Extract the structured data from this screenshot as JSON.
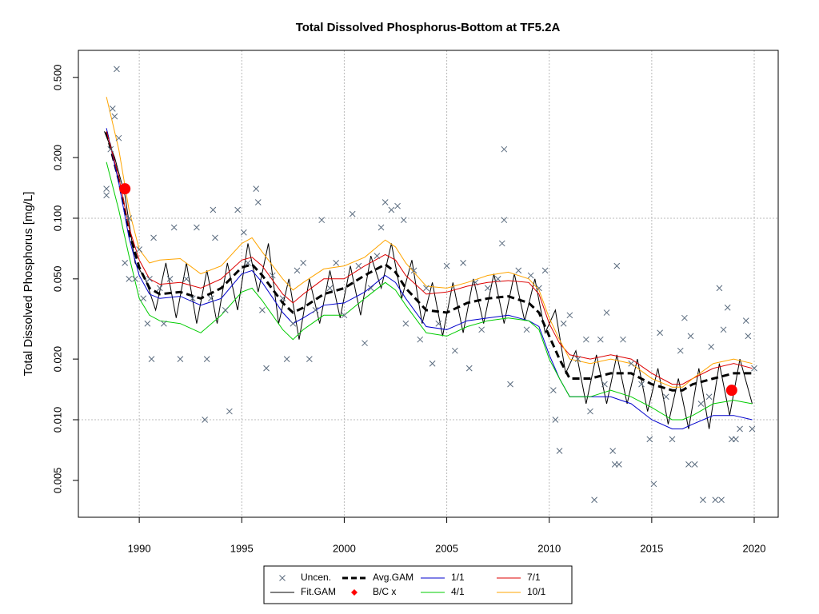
{
  "chart_data": {
    "type": "line",
    "title": "Total Dissolved Phosphorus-Bottom at TF5.2A",
    "y_label": "Total Dissolved Phosphorus [mg/L]",
    "xlim": [
      1987.03,
      2021.17
    ],
    "xticks": [
      1990,
      1995,
      2000,
      2005,
      2010,
      2015,
      2020
    ],
    "ylim": [
      0.00328,
      0.681
    ],
    "y_log": true,
    "yticks": [
      {
        "value": 0.005,
        "label": "0.005"
      },
      {
        "value": 0.01,
        "label": "0.010"
      },
      {
        "value": 0.02,
        "label": "0.020"
      },
      {
        "value": 0.05,
        "label": "0.050"
      },
      {
        "value": 0.1,
        "label": "0.100"
      },
      {
        "value": 0.2,
        "label": "0.200"
      },
      {
        "value": 0.5,
        "label": "0.500"
      }
    ],
    "y_grid_at": [
      0.01,
      0.1
    ],
    "x_grid": true,
    "legend": "bottom",
    "series": [
      {
        "name": "Uncen.",
        "color": "#5a6b7e",
        "style": "cross",
        "x": [
          1988.4,
          1988.4,
          1988.6,
          1988.7,
          1988.8,
          1988.9,
          1989,
          1989.2,
          1989.3,
          1989.5,
          1989.5,
          1989.8,
          1990,
          1990.2,
          1990.4,
          1990.5,
          1990.6,
          1990.7,
          1991,
          1991.2,
          1991.5,
          1991.7,
          1992,
          1992.3,
          1992.6,
          1992.8,
          1993.2,
          1993.3,
          1993.5,
          1993.6,
          1993.7,
          1994.2,
          1994.4,
          1994.8,
          1995.1,
          1995.3,
          1995.7,
          1995.8,
          1996,
          1996.2,
          1996.5,
          1997,
          1997.2,
          1997.5,
          1997.7,
          1998,
          1998.3,
          1998.6,
          1998.9,
          1999.3,
          1999.6,
          2000,
          2000.4,
          2000.7,
          2001,
          2001.3,
          2001.6,
          2001.8,
          2002,
          2002.3,
          2002.6,
          2002.9,
          2003,
          2003.4,
          2003.7,
          2004,
          2004.3,
          2004.6,
          2005,
          2005.4,
          2005.8,
          2006.1,
          2006.4,
          2006.7,
          2007,
          2007.5,
          2007.7,
          2007.8,
          2007.8,
          2008.1,
          2008.5,
          2008.9,
          2009.1,
          2009.5,
          2009.8,
          2010.2,
          2010.3,
          2010.5,
          2010.7,
          2011,
          2011.4,
          2011.8,
          2012,
          2012.2,
          2012.5,
          2012.7,
          2012.8,
          2013.1,
          2013.2,
          2013.3,
          2013.4,
          2013.6,
          2014,
          2014.5,
          2014.9,
          2015.1,
          2015.4,
          2015.7,
          2016,
          2016.4,
          2016.6,
          2016.8,
          2016.9,
          2017.1,
          2017.4,
          2017.5,
          2017.8,
          2017.9,
          2018.1,
          2018.3,
          2018.4,
          2018.5,
          2018.7,
          2018.9,
          2019.1,
          2019.3,
          2019.6,
          2019.7,
          2019.9,
          2020
        ],
        "values": [
          0.14,
          0.13,
          0.22,
          0.35,
          0.32,
          0.55,
          0.25,
          0.14,
          0.06,
          0.1,
          0.05,
          0.05,
          0.07,
          0.04,
          0.03,
          0.05,
          0.02,
          0.08,
          0.045,
          0.03,
          0.05,
          0.09,
          0.02,
          0.05,
          0.04,
          0.09,
          0.01,
          0.02,
          0.04,
          0.11,
          0.08,
          0.035,
          0.011,
          0.11,
          0.085,
          0.06,
          0.14,
          0.12,
          0.035,
          0.018,
          0.052,
          0.04,
          0.02,
          0.03,
          0.055,
          0.06,
          0.02,
          0.035,
          0.098,
          0.045,
          0.06,
          0.033,
          0.105,
          0.058,
          0.024,
          0.045,
          0.065,
          0.09,
          0.12,
          0.11,
          0.115,
          0.098,
          0.03,
          0.055,
          0.025,
          0.045,
          0.019,
          0.03,
          0.058,
          0.022,
          0.06,
          0.018,
          0.048,
          0.028,
          0.045,
          0.05,
          0.075,
          0.22,
          0.098,
          0.015,
          0.055,
          0.028,
          0.052,
          0.045,
          0.055,
          0.014,
          0.01,
          0.007,
          0.03,
          0.033,
          0.02,
          0.025,
          0.011,
          0.004,
          0.025,
          0.015,
          0.034,
          0.007,
          0.006,
          0.058,
          0.006,
          0.025,
          0.019,
          0.015,
          0.008,
          0.0048,
          0.027,
          0.013,
          0.008,
          0.022,
          0.032,
          0.006,
          0.026,
          0.006,
          0.012,
          0.004,
          0.013,
          0.023,
          0.004,
          0.045,
          0.004,
          0.028,
          0.036,
          0.008,
          0.008,
          0.009,
          0.031,
          0.026,
          0.009,
          0.018
        ]
      },
      {
        "name": "Fit.GAM",
        "color": "#000000",
        "style": "line",
        "x": [
          1988.3,
          1988.8,
          1989.3,
          1989.8,
          1990.3,
          1990.8,
          1991.3,
          1991.8,
          1992.3,
          1992.8,
          1993.3,
          1993.8,
          1994.3,
          1994.8,
          1995.3,
          1995.8,
          1996.3,
          1996.8,
          1997.3,
          1997.8,
          1998.3,
          1998.8,
          1999.3,
          1999.8,
          2000.3,
          2000.8,
          2001.3,
          2001.8,
          2002.3,
          2002.8,
          2003.3,
          2003.8,
          2004.3,
          2004.8,
          2005.3,
          2005.8,
          2006.3,
          2006.8,
          2007.3,
          2007.8,
          2008.3,
          2008.8,
          2009.3,
          2009.8,
          2010.3,
          2010.8,
          2011.3,
          2011.8,
          2012.3,
          2012.8,
          2013.3,
          2013.8,
          2014.3,
          2014.8,
          2015.3,
          2015.8,
          2016.3,
          2016.8,
          2017.3,
          2017.8,
          2018.3,
          2018.8,
          2019.3,
          2019.9
        ],
        "values": [
          0.27,
          0.2,
          0.13,
          0.06,
          0.05,
          0.035,
          0.06,
          0.032,
          0.06,
          0.03,
          0.055,
          0.03,
          0.06,
          0.035,
          0.075,
          0.043,
          0.075,
          0.03,
          0.05,
          0.025,
          0.05,
          0.03,
          0.055,
          0.032,
          0.058,
          0.033,
          0.065,
          0.045,
          0.075,
          0.04,
          0.062,
          0.03,
          0.048,
          0.026,
          0.048,
          0.027,
          0.05,
          0.03,
          0.053,
          0.03,
          0.053,
          0.031,
          0.05,
          0.027,
          0.035,
          0.017,
          0.022,
          0.012,
          0.021,
          0.012,
          0.021,
          0.012,
          0.02,
          0.011,
          0.018,
          0.0095,
          0.016,
          0.009,
          0.018,
          0.009,
          0.019,
          0.0105,
          0.02,
          0.012
        ]
      },
      {
        "name": "Avg.GAM",
        "color": "#000000",
        "style": "dashed",
        "x": [
          1988.4,
          1989,
          1989.5,
          1990,
          1990.5,
          1991,
          1992,
          1993,
          1994,
          1995,
          1995.5,
          1996,
          1997,
          1997.5,
          1998,
          1999,
          2000,
          2001,
          2002,
          2002.5,
          2003,
          2004,
          2005,
          2006,
          2007,
          2008,
          2009,
          2009.5,
          2010,
          2010.5,
          2011,
          2012,
          2013,
          2014,
          2015,
          2016,
          2016.5,
          2017,
          2018,
          2019,
          2019.9
        ],
        "values": [
          0.268,
          0.155,
          0.086,
          0.057,
          0.045,
          0.042,
          0.043,
          0.04,
          0.045,
          0.057,
          0.059,
          0.052,
          0.038,
          0.034,
          0.036,
          0.042,
          0.045,
          0.052,
          0.059,
          0.054,
          0.045,
          0.035,
          0.034,
          0.038,
          0.04,
          0.041,
          0.038,
          0.034,
          0.026,
          0.02,
          0.016,
          0.016,
          0.017,
          0.017,
          0.015,
          0.014,
          0.014,
          0.015,
          0.016,
          0.017,
          0.017
        ]
      },
      {
        "name": "B/C x",
        "color": "#ff0000",
        "style": "dot",
        "x": [
          1989.3,
          2018.9
        ],
        "values": [
          0.14,
          0.014
        ]
      },
      {
        "name": "1/1",
        "color": "#0000cc",
        "style": "line",
        "x": [
          1988.4,
          1989,
          1989.5,
          1990,
          1990.5,
          1991,
          1992,
          1993,
          1994,
          1995,
          1995.5,
          1996,
          1997,
          1997.5,
          1998,
          1999,
          2000,
          2001,
          2002,
          2002.5,
          2003,
          2004,
          2005,
          2006,
          2007,
          2008,
          2009,
          2009.5,
          2010,
          2010.5,
          2011,
          2012,
          2013,
          2014,
          2015,
          2016,
          2016.5,
          2017,
          2018,
          2019,
          2019.9
        ],
        "values": [
          0.28,
          0.15,
          0.08,
          0.052,
          0.042,
          0.04,
          0.041,
          0.037,
          0.04,
          0.053,
          0.055,
          0.048,
          0.034,
          0.03,
          0.032,
          0.037,
          0.038,
          0.043,
          0.052,
          0.048,
          0.04,
          0.029,
          0.028,
          0.031,
          0.032,
          0.033,
          0.031,
          0.029,
          0.021,
          0.016,
          0.013,
          0.013,
          0.013,
          0.012,
          0.01,
          0.009,
          0.009,
          0.0095,
          0.0105,
          0.0105,
          0.01
        ]
      },
      {
        "name": "4/1",
        "color": "#00cc00",
        "style": "line",
        "x": [
          1988.4,
          1989,
          1989.5,
          1990,
          1990.5,
          1991,
          1992,
          1993,
          1994,
          1995,
          1995.5,
          1996,
          1997,
          1997.5,
          1998,
          1999,
          2000,
          2001,
          2002,
          2002.5,
          2003,
          2004,
          2005,
          2006,
          2007,
          2008,
          2009,
          2009.5,
          2010,
          2010.5,
          2011,
          2012,
          2013,
          2014,
          2015,
          2016,
          2016.5,
          2017,
          2018,
          2019,
          2019.9
        ],
        "values": [
          0.19,
          0.11,
          0.065,
          0.04,
          0.033,
          0.031,
          0.03,
          0.027,
          0.033,
          0.043,
          0.045,
          0.039,
          0.028,
          0.025,
          0.028,
          0.033,
          0.033,
          0.04,
          0.048,
          0.044,
          0.037,
          0.027,
          0.026,
          0.029,
          0.031,
          0.032,
          0.031,
          0.028,
          0.02,
          0.016,
          0.013,
          0.013,
          0.014,
          0.013,
          0.0115,
          0.01,
          0.01,
          0.0105,
          0.012,
          0.0125,
          0.012
        ]
      },
      {
        "name": "7/1",
        "color": "#dd0000",
        "style": "line",
        "x": [
          1988.4,
          1989,
          1989.5,
          1990,
          1990.5,
          1991,
          1992,
          1993,
          1994,
          1995,
          1995.5,
          1996,
          1997,
          1997.5,
          1998,
          1999,
          2000,
          2001,
          2002,
          2002.5,
          2003,
          2004,
          2005,
          2006,
          2007,
          2008,
          2009,
          2009.5,
          2010,
          2010.5,
          2011,
          2012,
          2013,
          2014,
          2015,
          2016,
          2016.5,
          2017,
          2018,
          2019,
          2019.9
        ],
        "values": [
          0.27,
          0.16,
          0.09,
          0.062,
          0.05,
          0.047,
          0.048,
          0.045,
          0.05,
          0.062,
          0.064,
          0.058,
          0.042,
          0.038,
          0.042,
          0.05,
          0.05,
          0.058,
          0.066,
          0.062,
          0.052,
          0.042,
          0.043,
          0.046,
          0.048,
          0.049,
          0.048,
          0.042,
          0.03,
          0.024,
          0.021,
          0.02,
          0.021,
          0.02,
          0.017,
          0.015,
          0.015,
          0.016,
          0.018,
          0.019,
          0.018
        ]
      },
      {
        "name": "10/1",
        "color": "#ffa500",
        "style": "line",
        "x": [
          1988.4,
          1989,
          1989.5,
          1990,
          1990.5,
          1991,
          1992,
          1993,
          1994,
          1995,
          1995.5,
          1996,
          1997,
          1997.5,
          1998,
          1999,
          2000,
          2001,
          2002,
          2002.5,
          2003,
          2004,
          2005,
          2006,
          2007,
          2008,
          2009,
          2009.5,
          2010,
          2010.5,
          2011,
          2012,
          2013,
          2014,
          2015,
          2016,
          2016.5,
          2017,
          2018,
          2019,
          2019.9
        ],
        "values": [
          0.4,
          0.22,
          0.11,
          0.07,
          0.06,
          0.062,
          0.063,
          0.053,
          0.058,
          0.075,
          0.08,
          0.068,
          0.05,
          0.044,
          0.048,
          0.056,
          0.058,
          0.064,
          0.078,
          0.072,
          0.06,
          0.046,
          0.045,
          0.048,
          0.052,
          0.054,
          0.05,
          0.044,
          0.032,
          0.025,
          0.02,
          0.019,
          0.02,
          0.019,
          0.016,
          0.0145,
          0.0145,
          0.016,
          0.019,
          0.02,
          0.019
        ]
      }
    ]
  }
}
